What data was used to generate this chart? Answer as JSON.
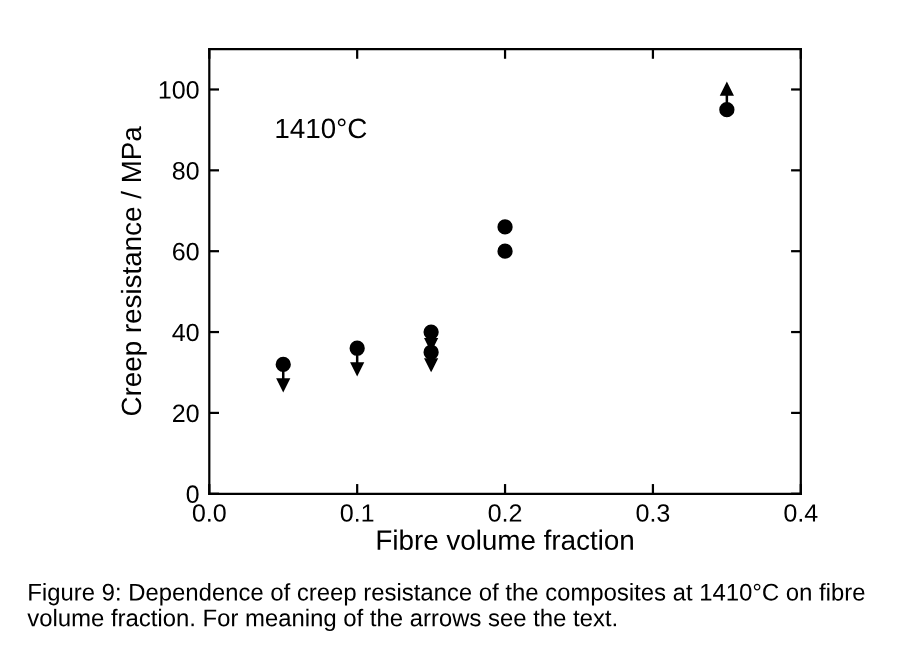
{
  "chart_data": {
    "type": "scatter",
    "xlabel": "Fibre volume fraction",
    "ylabel": "Creep resistance / MPa",
    "x": [
      0.05,
      0.1,
      0.15,
      0.15,
      0.2,
      0.2,
      0.35
    ],
    "values": [
      32,
      36,
      40,
      35,
      66,
      60,
      95
    ],
    "errors": [
      [
        27,
        32
      ],
      [
        31,
        36
      ],
      [
        37,
        40
      ],
      [
        32,
        35
      ],
      null,
      null,
      [
        95,
        100
      ]
    ],
    "color": "#000000",
    "marker": "circle",
    "xlim": [
      0.0,
      0.4
    ],
    "xticks": [
      {
        "value": 0.0,
        "label": "0.0"
      },
      0.1,
      0.2,
      0.3,
      0.4
    ],
    "ylim": [
      0,
      110
    ],
    "yticks": [
      0,
      20,
      40,
      60,
      80,
      100
    ],
    "grid": false,
    "legend": false,
    "annotations": [
      "1410°C",
      "Figure 9: Dependence of creep resistance of the composites at 1410°C on fibre volume fraction. For meaning of the arrows see the text."
    ]
  }
}
